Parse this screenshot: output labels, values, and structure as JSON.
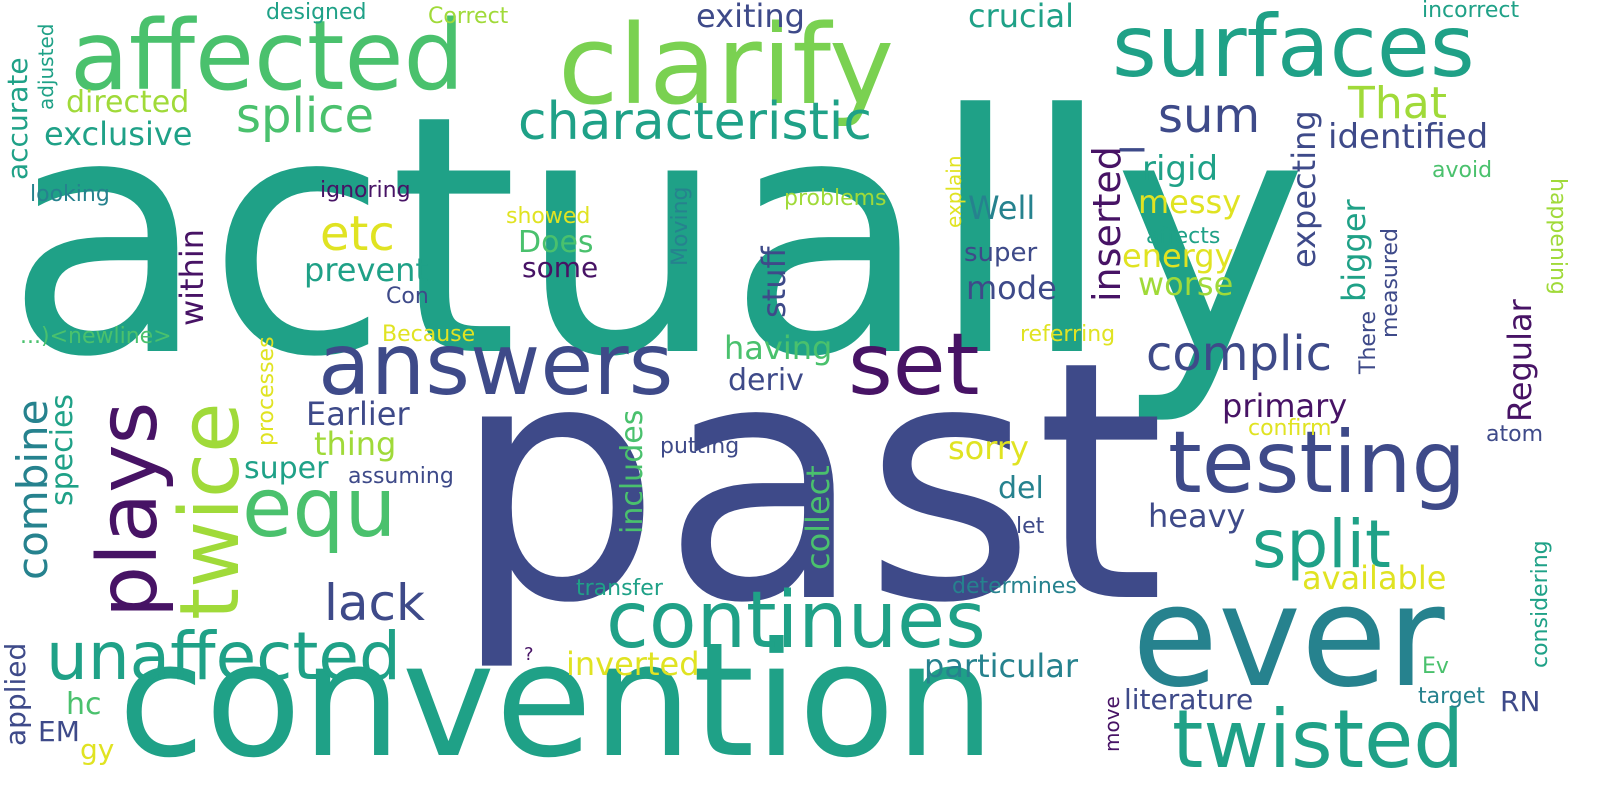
{
  "palette": {
    "purple": "#471365",
    "indigo": "#3e4a89",
    "blue": "#30698e",
    "teal": "#26828e",
    "green": "#1fa187",
    "lightgreen": "#4ac16d",
    "lime": "#a0da39",
    "yellow": "#e0e322"
  },
  "words": {
    "actually": "actually",
    "past": "past",
    "convention": "convention",
    "ever": "ever",
    "clarify": "clarify",
    "affected": "affected",
    "surfaces": "surfaces",
    "answers": "answers",
    "set": "set",
    "testing": "testing",
    "continues": "continues",
    "unaffected": "unaffected",
    "twisted": "twisted",
    "plays": "plays",
    "twice": "twice",
    "equ": "equ",
    "split": "split",
    "characteristic": "characteristic",
    "complic": "complic",
    "splice": "splice",
    "That": "That",
    "sum": "sum",
    "etc": "etc",
    "lack": "lack",
    "combine": "combine",
    "identified": "identified",
    "exclusive": "exclusive",
    "directed": "directed",
    "crucial": "crucial",
    "exiting": "exiting",
    "rigid": "rigid",
    "messy": "messy",
    "energy": "energy",
    "worse": "worse",
    "Well": "Well",
    "Does": "Does",
    "prevent": "prevent",
    "some": "some",
    "super1": "super",
    "super2": "super",
    "mode": "mode",
    "inserted": "inserted",
    "expecting": "expecting",
    "bigger": "bigger",
    "Regular": "Regular",
    "stuff": "stuff",
    "within": "within",
    "having": "having",
    "deriv": "deriv",
    "primary": "primary",
    "Earlier": "Earlier",
    "thing": "thing",
    "sorry": "sorry",
    "del": "del",
    "heavy": "heavy",
    "available": "available",
    "particular": "particular",
    "inverted": "inverted",
    "literature": "literature",
    "RN": "RN",
    "hc": "hc",
    "EM": "EM",
    "gy": "gy",
    "species": "species",
    "includes": "includes",
    "collect": "collect",
    "accurate": "accurate",
    "adjusted": "adjusted",
    "designed": "designed",
    "Correct": "Correct",
    "incorrect": "incorrect",
    "looking": "looking",
    "ignoring": "ignoring",
    "showed": "showed",
    "problems": "problems",
    "explain": "explain",
    "Moving": "Moving",
    "affects": "affects",
    "avoid": "avoid",
    "happening": "happening",
    "measured": "measured",
    "There": "There",
    "Con": "Con",
    "Because": "Because",
    "newline": "...)<newline>",
    "processes": "processes",
    "referring": "referring",
    "confirm": "confirm",
    "atom": "atom",
    "putting": "putting",
    "assuming": "assuming",
    "let": "let",
    "determines": "determines",
    "transfer": "transfer",
    "applied": "applied",
    "considering": "considering",
    "Ev": "Ev",
    "target": "target",
    "move": "move",
    "question": "?",
    "underscore": "_"
  }
}
